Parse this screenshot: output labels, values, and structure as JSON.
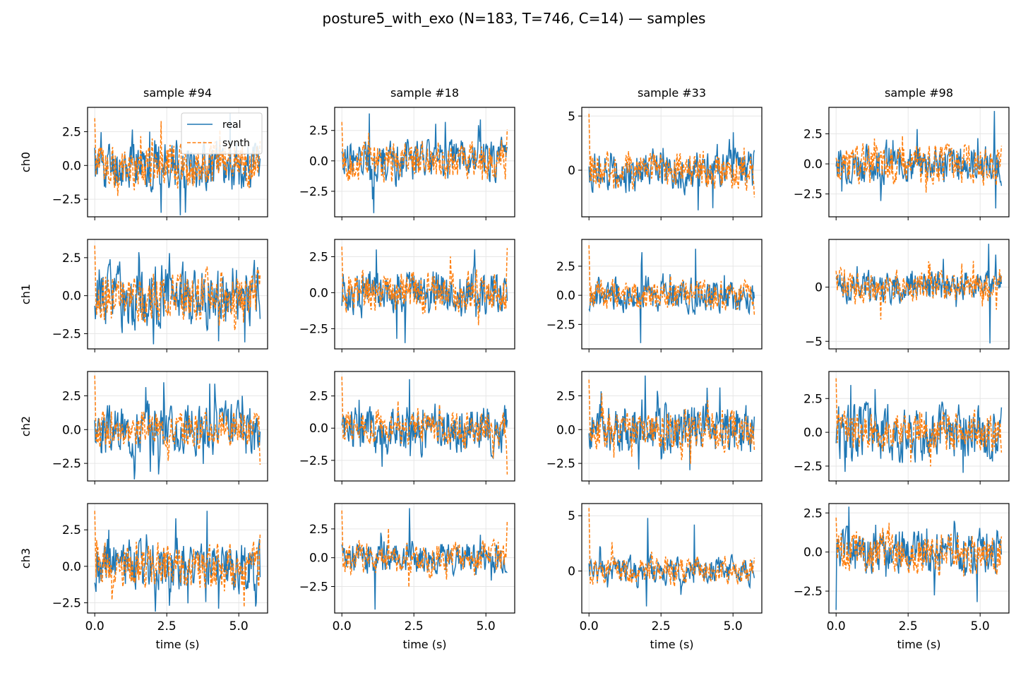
{
  "figure_title": "posture5_with_exo (N=183, T=746, C=14) — samples",
  "colors": {
    "real": "#1f77b4",
    "synth": "#ff7f0e",
    "grid": "#e6e6e6"
  },
  "chart_data": {
    "type": "line",
    "title": "posture5_with_exo (N=183, T=746, C=14) — samples",
    "grid": true,
    "legend": {
      "placement": "upper right",
      "in_panel": "ch0 / sample #94",
      "entries": [
        "real",
        "synth"
      ]
    },
    "series_styles": {
      "real": "solid",
      "synth": "dashed"
    },
    "x_range": [
      0,
      5.74
    ],
    "xlabel": "time (s)",
    "row_labels": [
      "ch0",
      "ch1",
      "ch2",
      "ch3"
    ],
    "column_titles": [
      "sample #94",
      "sample #18",
      "sample #33",
      "sample #98"
    ],
    "xticks": [
      0.0,
      2.5,
      5.0
    ],
    "xtick_labels": [
      "0.0",
      "2.5",
      "5.0"
    ],
    "panels": [
      {
        "row": 0,
        "col": 0,
        "ylim": [
          -3.8,
          4.3
        ],
        "yticks": [
          -2.5,
          0.0,
          2.5
        ],
        "ytick_labels": [
          "−2.5",
          "0.0",
          "2.5"
        ],
        "real_amp": 1.2,
        "real_spikes": [
          [
            2.3,
            -3.5
          ],
          [
            4.7,
            3.9
          ],
          [
            1.9,
            2.5
          ]
        ],
        "synth_amp": 1.1,
        "synth_start": 3.5,
        "synth_end": 1.8
      },
      {
        "row": 0,
        "col": 1,
        "ylim": [
          -4.6,
          4.4
        ],
        "yticks": [
          -2.5,
          0.0,
          2.5
        ],
        "ytick_labels": [
          "−2.5",
          "0.0",
          "2.5"
        ],
        "real_amp": 1.1,
        "real_spikes": [
          [
            0.95,
            3.9
          ],
          [
            1.1,
            -4.3
          ],
          [
            4.8,
            3.4
          ],
          [
            3.6,
            3.2
          ]
        ],
        "synth_amp": 1.0,
        "synth_start": 3.2,
        "synth_end": 2.6
      },
      {
        "row": 0,
        "col": 2,
        "ylim": [
          -4.3,
          5.8
        ],
        "yticks": [
          0,
          5
        ],
        "ytick_labels": [
          "0",
          "5"
        ],
        "real_amp": 1.2,
        "real_spikes": [
          [
            3.8,
            -3.7
          ],
          [
            5.0,
            3.5
          ],
          [
            4.3,
            -3.5
          ]
        ],
        "synth_amp": 1.1,
        "synth_start": 5.2,
        "synth_end": -2.5
      },
      {
        "row": 0,
        "col": 3,
        "ylim": [
          -4.4,
          4.7
        ],
        "yticks": [
          -2.5,
          0.0,
          2.5
        ],
        "ytick_labels": [
          "−2.5",
          "0.0",
          "2.5"
        ],
        "real_amp": 1.0,
        "real_spikes": [
          [
            5.5,
            4.4
          ],
          [
            5.55,
            -3.7
          ],
          [
            0.2,
            -2.3
          ]
        ],
        "synth_amp": 1.0,
        "synth_start": 0.5,
        "synth_end": 1.5
      },
      {
        "row": 1,
        "col": 0,
        "ylim": [
          -3.5,
          3.7
        ],
        "yticks": [
          -2.5,
          0.0,
          2.5
        ],
        "ytick_labels": [
          "−2.5",
          "0.0",
          "2.5"
        ],
        "real_amp": 1.3,
        "real_spikes": [
          [
            2.05,
            -3.2
          ],
          [
            2.6,
            2.8
          ],
          [
            4.3,
            -3.0
          ]
        ],
        "synth_amp": 1.0,
        "synth_start": 3.3,
        "synth_end": 1.4
      },
      {
        "row": 1,
        "col": 1,
        "ylim": [
          -3.9,
          3.7
        ],
        "yticks": [
          -2.5,
          0.0,
          2.5
        ],
        "ytick_labels": [
          "−2.5",
          "0.0",
          "2.5"
        ],
        "real_amp": 1.0,
        "real_spikes": [
          [
            1.2,
            3.0
          ],
          [
            2.2,
            -3.5
          ],
          [
            4.6,
            3.0
          ],
          [
            1.9,
            -3.2
          ]
        ],
        "synth_amp": 0.9,
        "synth_start": 3.2,
        "synth_end": 3.1
      },
      {
        "row": 1,
        "col": 2,
        "ylim": [
          -4.6,
          4.8
        ],
        "yticks": [
          -2.5,
          0.0,
          2.5
        ],
        "ytick_labels": [
          "−2.5",
          "0.0",
          "2.5"
        ],
        "real_amp": 0.9,
        "real_spikes": [
          [
            1.85,
            3.7
          ],
          [
            3.7,
            4.0
          ],
          [
            1.8,
            -4.1
          ]
        ],
        "synth_amp": 0.8,
        "synth_start": 4.3,
        "synth_end": -1.7
      },
      {
        "row": 1,
        "col": 3,
        "ylim": [
          -5.7,
          4.4
        ],
        "yticks": [
          -5,
          0
        ],
        "ytick_labels": [
          "−5",
          "0"
        ],
        "real_amp": 0.9,
        "real_spikes": [
          [
            5.3,
            4.0
          ],
          [
            5.35,
            -5.2
          ],
          [
            5.55,
            3.0
          ]
        ],
        "synth_amp": 0.9,
        "synth_start": 1.5,
        "synth_end": 1.0
      },
      {
        "row": 2,
        "col": 0,
        "ylim": [
          -3.8,
          4.3
        ],
        "yticks": [
          -2.5,
          0.0,
          2.5
        ],
        "ytick_labels": [
          "−2.5",
          "0.0",
          "2.5"
        ],
        "real_amp": 1.2,
        "real_spikes": [
          [
            2.4,
            3.5
          ],
          [
            4.0,
            3.4
          ],
          [
            1.4,
            -3.0
          ]
        ],
        "synth_amp": 0.8,
        "synth_start": 4.0,
        "synth_end": -2.6
      },
      {
        "row": 2,
        "col": 1,
        "ylim": [
          -4.1,
          4.4
        ],
        "yticks": [
          -2.5,
          0.0,
          2.5
        ],
        "ytick_labels": [
          "−2.5",
          "0.0",
          "2.5"
        ],
        "real_amp": 1.2,
        "real_spikes": [
          [
            2.35,
            3.8
          ],
          [
            1.4,
            -3.0
          ]
        ],
        "synth_amp": 0.8,
        "synth_start": 4.0,
        "synth_end": -3.6
      },
      {
        "row": 2,
        "col": 2,
        "ylim": [
          -3.8,
          4.3
        ],
        "yticks": [
          -2.5,
          0.0,
          2.5
        ],
        "ytick_labels": [
          "−2.5",
          "0.0",
          "2.5"
        ],
        "real_amp": 1.2,
        "real_spikes": [
          [
            1.95,
            4.0
          ],
          [
            3.5,
            -3.0
          ],
          [
            4.1,
            3.1
          ]
        ],
        "synth_amp": 0.9,
        "synth_start": 3.7,
        "synth_end": -1.5
      },
      {
        "row": 2,
        "col": 3,
        "ylim": [
          -3.6,
          4.5
        ],
        "yticks": [
          -2.5,
          0.0,
          2.5
        ],
        "ytick_labels": [
          "−2.5",
          "0.0",
          "2.5"
        ],
        "real_amp": 1.3,
        "real_spikes": [
          [
            0.5,
            3.5
          ],
          [
            4.4,
            -3.0
          ],
          [
            1.35,
            3.2
          ]
        ],
        "synth_amp": 0.9,
        "synth_start": 4.0,
        "synth_end": -1.5
      },
      {
        "row": 3,
        "col": 0,
        "ylim": [
          -3.2,
          4.3
        ],
        "yticks": [
          -2.5,
          0.0,
          2.5
        ],
        "ytick_labels": [
          "−2.5",
          "0.0",
          "2.5"
        ],
        "real_amp": 1.1,
        "real_spikes": [
          [
            3.9,
            3.8
          ],
          [
            4.3,
            -2.9
          ],
          [
            2.6,
            -2.7
          ]
        ],
        "synth_amp": 1.0,
        "synth_start": 3.8,
        "synth_end": 2.2
      },
      {
        "row": 3,
        "col": 1,
        "ylim": [
          -4.8,
          4.7
        ],
        "yticks": [
          -2.5,
          0.0,
          2.5
        ],
        "ytick_labels": [
          "−2.5",
          "0.0",
          "2.5"
        ],
        "real_amp": 0.9,
        "real_spikes": [
          [
            2.35,
            4.3
          ],
          [
            1.15,
            -4.5
          ],
          [
            4.8,
            2.0
          ]
        ],
        "synth_amp": 0.9,
        "synth_start": 4.1,
        "synth_end": 3.2
      },
      {
        "row": 3,
        "col": 2,
        "ylim": [
          -3.8,
          6.1
        ],
        "yticks": [
          0,
          5
        ],
        "ytick_labels": [
          "0",
          "5"
        ],
        "real_amp": 0.8,
        "real_spikes": [
          [
            2.05,
            4.8
          ],
          [
            3.65,
            4.2
          ],
          [
            2.0,
            -3.2
          ]
        ],
        "synth_amp": 0.8,
        "synth_start": 5.7,
        "synth_end": 1.2
      },
      {
        "row": 3,
        "col": 3,
        "ylim": [
          -3.9,
          3.1
        ],
        "yticks": [
          -2.5,
          0.0,
          2.5
        ],
        "ytick_labels": [
          "−2.5",
          "0.0",
          "2.5"
        ],
        "real_amp": 0.9,
        "real_spikes": [
          [
            0.0,
            -3.7
          ],
          [
            0.45,
            2.9
          ],
          [
            4.9,
            -3.2
          ]
        ],
        "synth_amp": 0.8,
        "synth_start": 2.2,
        "synth_end": 1.0
      }
    ]
  }
}
